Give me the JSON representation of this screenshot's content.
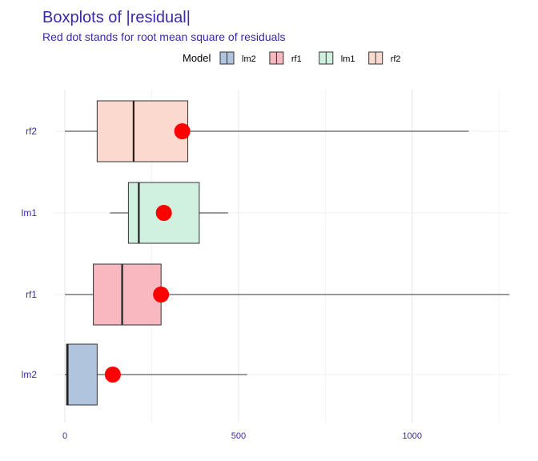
{
  "chart_data": {
    "type": "boxplot",
    "orientation": "horizontal",
    "title": "Boxplots of |residual|",
    "subtitle": "Red dot stands for root mean square of residuals",
    "legend_title": "Model",
    "legend_placement": "top-center",
    "xlim": [
      0,
      1280
    ],
    "x_ticks": [
      0,
      500,
      1000
    ],
    "grid": true,
    "categories": [
      "lm2",
      "rf1",
      "lm1",
      "rf2"
    ],
    "series": [
      {
        "name": "lm2",
        "color": "#b0c4de",
        "whisker_low": 0,
        "q1": 5,
        "median": 8,
        "q3": 93,
        "whisker_high": 525,
        "rmse": 138
      },
      {
        "name": "rf1",
        "color": "#f7b8c0",
        "whisker_low": 0,
        "q1": 82,
        "median": 165,
        "q3": 277,
        "whisker_high": 1280,
        "rmse": 277
      },
      {
        "name": "lm1",
        "color": "#d0f0e0",
        "whisker_low": 130,
        "q1": 183,
        "median": 213,
        "q3": 387,
        "whisker_high": 470,
        "rmse": 285
      },
      {
        "name": "rf2",
        "color": "#fcd9ce",
        "whisker_low": 0,
        "q1": 93,
        "median": 198,
        "q3": 354,
        "whisker_high": 1163,
        "rmse": 338
      }
    ],
    "rmse_color": "#ff0000"
  }
}
